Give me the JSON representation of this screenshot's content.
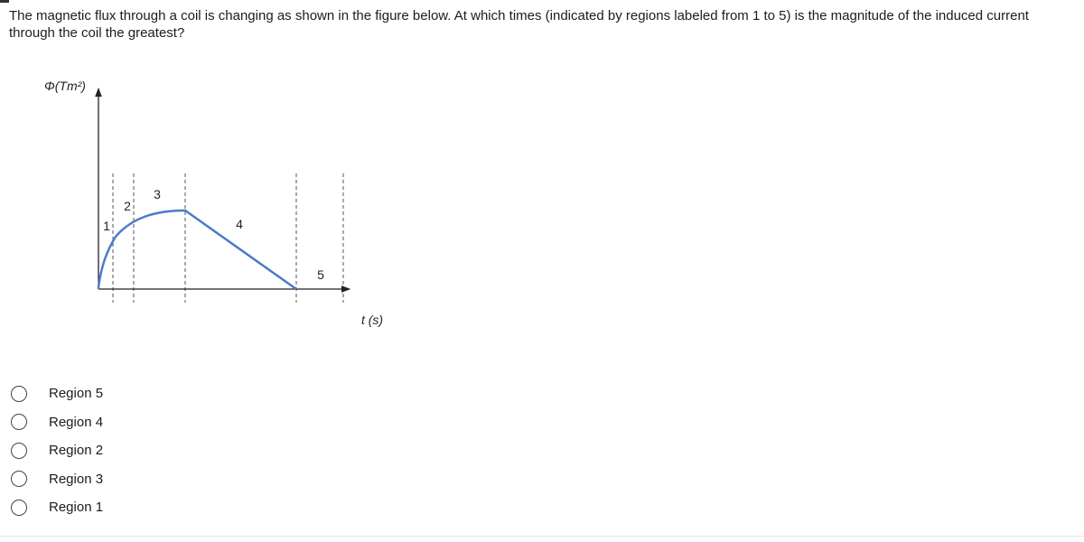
{
  "question": "The magnetic flux through a coil is changing as shown in the figure below. At which times (indicated by regions labeled from 1 to 5) is the magnitude of the induced current through the coil the greatest?",
  "figure": {
    "y_label": "Φ(Tm²)",
    "x_label": "t (s)",
    "regions": [
      "1",
      "2",
      "3",
      "4",
      "5"
    ]
  },
  "options": [
    "Region 5",
    "Region 4",
    "Region 2",
    "Region 3",
    "Region 1"
  ]
}
